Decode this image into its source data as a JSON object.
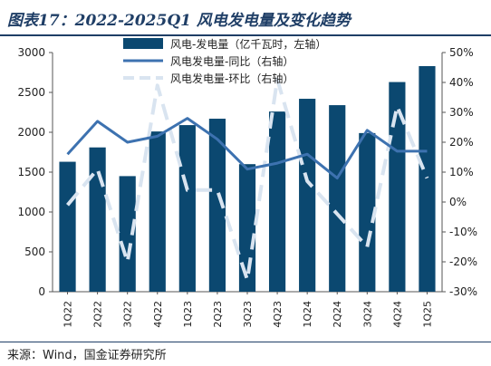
{
  "title": "图表17：2022-2025Q1 风电发电量及变化趋势",
  "source": "来源：Wind，国金证券研究所",
  "colors": {
    "bar": "#0b4870",
    "line": "#3d72b0",
    "dash": "#d9e4f0",
    "rule": "#1f3e66"
  },
  "chart_data": {
    "type": "bar",
    "categories": [
      "1Q22",
      "2Q22",
      "3Q22",
      "4Q22",
      "1Q23",
      "2Q23",
      "3Q23",
      "4Q23",
      "1Q24",
      "2Q24",
      "3Q24",
      "4Q24",
      "1Q25"
    ],
    "series": [
      {
        "name": "风电-发电量（亿千瓦时，左轴）",
        "type": "bar",
        "axis": "left",
        "values": [
          1630,
          1810,
          1450,
          2010,
          2090,
          2170,
          1600,
          2260,
          2420,
          2340,
          1990,
          2630,
          2830
        ]
      },
      {
        "name": "风电发电量-同比（右轴）",
        "type": "line",
        "axis": "right",
        "values": [
          16,
          27,
          20,
          22,
          28,
          21,
          11,
          13,
          16,
          8,
          24,
          17,
          17
        ]
      },
      {
        "name": "风电发电量-环比（右轴）",
        "type": "line-dashed",
        "axis": "right",
        "values": [
          -1,
          11,
          -20,
          39,
          4,
          4,
          -26,
          41,
          7,
          -4,
          -15,
          32,
          8
        ]
      }
    ],
    "y_left": {
      "ylim": [
        0,
        3000
      ],
      "ticks": [
        "0",
        "500",
        "1000",
        "1500",
        "2000",
        "2500",
        "3000"
      ]
    },
    "y_right": {
      "ylim": [
        -30,
        50
      ],
      "ticks": [
        "-30%",
        "-20%",
        "-10%",
        "0%",
        "10%",
        "20%",
        "30%",
        "40%",
        "50%"
      ]
    },
    "legend_placement": "top"
  }
}
